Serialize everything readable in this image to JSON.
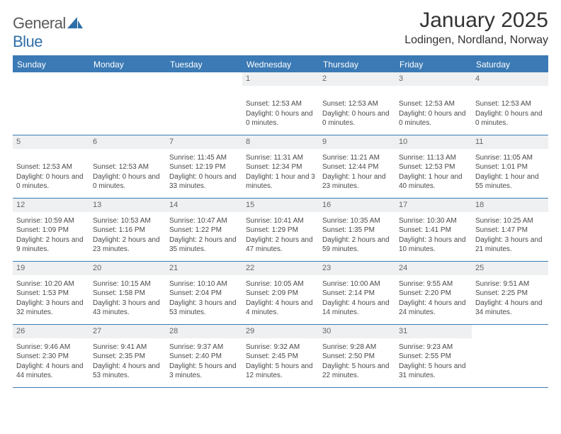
{
  "brand": {
    "word1": "General",
    "word2": "Blue"
  },
  "title": "January 2025",
  "location": "Lodingen, Nordland, Norway",
  "colors": {
    "accent": "#3b7ab5",
    "header_text": "#ffffff",
    "daynum_bg": "#eef0f1",
    "body_text": "#4a4a4a",
    "title_text": "#333333"
  },
  "day_names": [
    "Sunday",
    "Monday",
    "Tuesday",
    "Wednesday",
    "Thursday",
    "Friday",
    "Saturday"
  ],
  "weeks": [
    [
      {
        "num": "",
        "lines": []
      },
      {
        "num": "",
        "lines": []
      },
      {
        "num": "",
        "lines": []
      },
      {
        "num": "1",
        "lines": [
          "",
          "Sunset: 12:53 AM",
          "Daylight: 0 hours and 0 minutes."
        ]
      },
      {
        "num": "2",
        "lines": [
          "",
          "Sunset: 12:53 AM",
          "Daylight: 0 hours and 0 minutes."
        ]
      },
      {
        "num": "3",
        "lines": [
          "",
          "Sunset: 12:53 AM",
          "Daylight: 0 hours and 0 minutes."
        ]
      },
      {
        "num": "4",
        "lines": [
          "",
          "Sunset: 12:53 AM",
          "Daylight: 0 hours and 0 minutes."
        ]
      }
    ],
    [
      {
        "num": "5",
        "lines": [
          "",
          "Sunset: 12:53 AM",
          "Daylight: 0 hours and 0 minutes."
        ]
      },
      {
        "num": "6",
        "lines": [
          "",
          "Sunset: 12:53 AM",
          "Daylight: 0 hours and 0 minutes."
        ]
      },
      {
        "num": "7",
        "lines": [
          "Sunrise: 11:45 AM",
          "Sunset: 12:19 PM",
          "Daylight: 0 hours and 33 minutes."
        ]
      },
      {
        "num": "8",
        "lines": [
          "Sunrise: 11:31 AM",
          "Sunset: 12:34 PM",
          "Daylight: 1 hour and 3 minutes."
        ]
      },
      {
        "num": "9",
        "lines": [
          "Sunrise: 11:21 AM",
          "Sunset: 12:44 PM",
          "Daylight: 1 hour and 23 minutes."
        ]
      },
      {
        "num": "10",
        "lines": [
          "Sunrise: 11:13 AM",
          "Sunset: 12:53 PM",
          "Daylight: 1 hour and 40 minutes."
        ]
      },
      {
        "num": "11",
        "lines": [
          "Sunrise: 11:05 AM",
          "Sunset: 1:01 PM",
          "Daylight: 1 hour and 55 minutes."
        ]
      }
    ],
    [
      {
        "num": "12",
        "lines": [
          "Sunrise: 10:59 AM",
          "Sunset: 1:09 PM",
          "Daylight: 2 hours and 9 minutes."
        ]
      },
      {
        "num": "13",
        "lines": [
          "Sunrise: 10:53 AM",
          "Sunset: 1:16 PM",
          "Daylight: 2 hours and 23 minutes."
        ]
      },
      {
        "num": "14",
        "lines": [
          "Sunrise: 10:47 AM",
          "Sunset: 1:22 PM",
          "Daylight: 2 hours and 35 minutes."
        ]
      },
      {
        "num": "15",
        "lines": [
          "Sunrise: 10:41 AM",
          "Sunset: 1:29 PM",
          "Daylight: 2 hours and 47 minutes."
        ]
      },
      {
        "num": "16",
        "lines": [
          "Sunrise: 10:35 AM",
          "Sunset: 1:35 PM",
          "Daylight: 2 hours and 59 minutes."
        ]
      },
      {
        "num": "17",
        "lines": [
          "Sunrise: 10:30 AM",
          "Sunset: 1:41 PM",
          "Daylight: 3 hours and 10 minutes."
        ]
      },
      {
        "num": "18",
        "lines": [
          "Sunrise: 10:25 AM",
          "Sunset: 1:47 PM",
          "Daylight: 3 hours and 21 minutes."
        ]
      }
    ],
    [
      {
        "num": "19",
        "lines": [
          "Sunrise: 10:20 AM",
          "Sunset: 1:53 PM",
          "Daylight: 3 hours and 32 minutes."
        ]
      },
      {
        "num": "20",
        "lines": [
          "Sunrise: 10:15 AM",
          "Sunset: 1:58 PM",
          "Daylight: 3 hours and 43 minutes."
        ]
      },
      {
        "num": "21",
        "lines": [
          "Sunrise: 10:10 AM",
          "Sunset: 2:04 PM",
          "Daylight: 3 hours and 53 minutes."
        ]
      },
      {
        "num": "22",
        "lines": [
          "Sunrise: 10:05 AM",
          "Sunset: 2:09 PM",
          "Daylight: 4 hours and 4 minutes."
        ]
      },
      {
        "num": "23",
        "lines": [
          "Sunrise: 10:00 AM",
          "Sunset: 2:14 PM",
          "Daylight: 4 hours and 14 minutes."
        ]
      },
      {
        "num": "24",
        "lines": [
          "Sunrise: 9:55 AM",
          "Sunset: 2:20 PM",
          "Daylight: 4 hours and 24 minutes."
        ]
      },
      {
        "num": "25",
        "lines": [
          "Sunrise: 9:51 AM",
          "Sunset: 2:25 PM",
          "Daylight: 4 hours and 34 minutes."
        ]
      }
    ],
    [
      {
        "num": "26",
        "lines": [
          "Sunrise: 9:46 AM",
          "Sunset: 2:30 PM",
          "Daylight: 4 hours and 44 minutes."
        ]
      },
      {
        "num": "27",
        "lines": [
          "Sunrise: 9:41 AM",
          "Sunset: 2:35 PM",
          "Daylight: 4 hours and 53 minutes."
        ]
      },
      {
        "num": "28",
        "lines": [
          "Sunrise: 9:37 AM",
          "Sunset: 2:40 PM",
          "Daylight: 5 hours and 3 minutes."
        ]
      },
      {
        "num": "29",
        "lines": [
          "Sunrise: 9:32 AM",
          "Sunset: 2:45 PM",
          "Daylight: 5 hours and 12 minutes."
        ]
      },
      {
        "num": "30",
        "lines": [
          "Sunrise: 9:28 AM",
          "Sunset: 2:50 PM",
          "Daylight: 5 hours and 22 minutes."
        ]
      },
      {
        "num": "31",
        "lines": [
          "Sunrise: 9:23 AM",
          "Sunset: 2:55 PM",
          "Daylight: 5 hours and 31 minutes."
        ]
      },
      {
        "num": "",
        "lines": []
      }
    ]
  ]
}
